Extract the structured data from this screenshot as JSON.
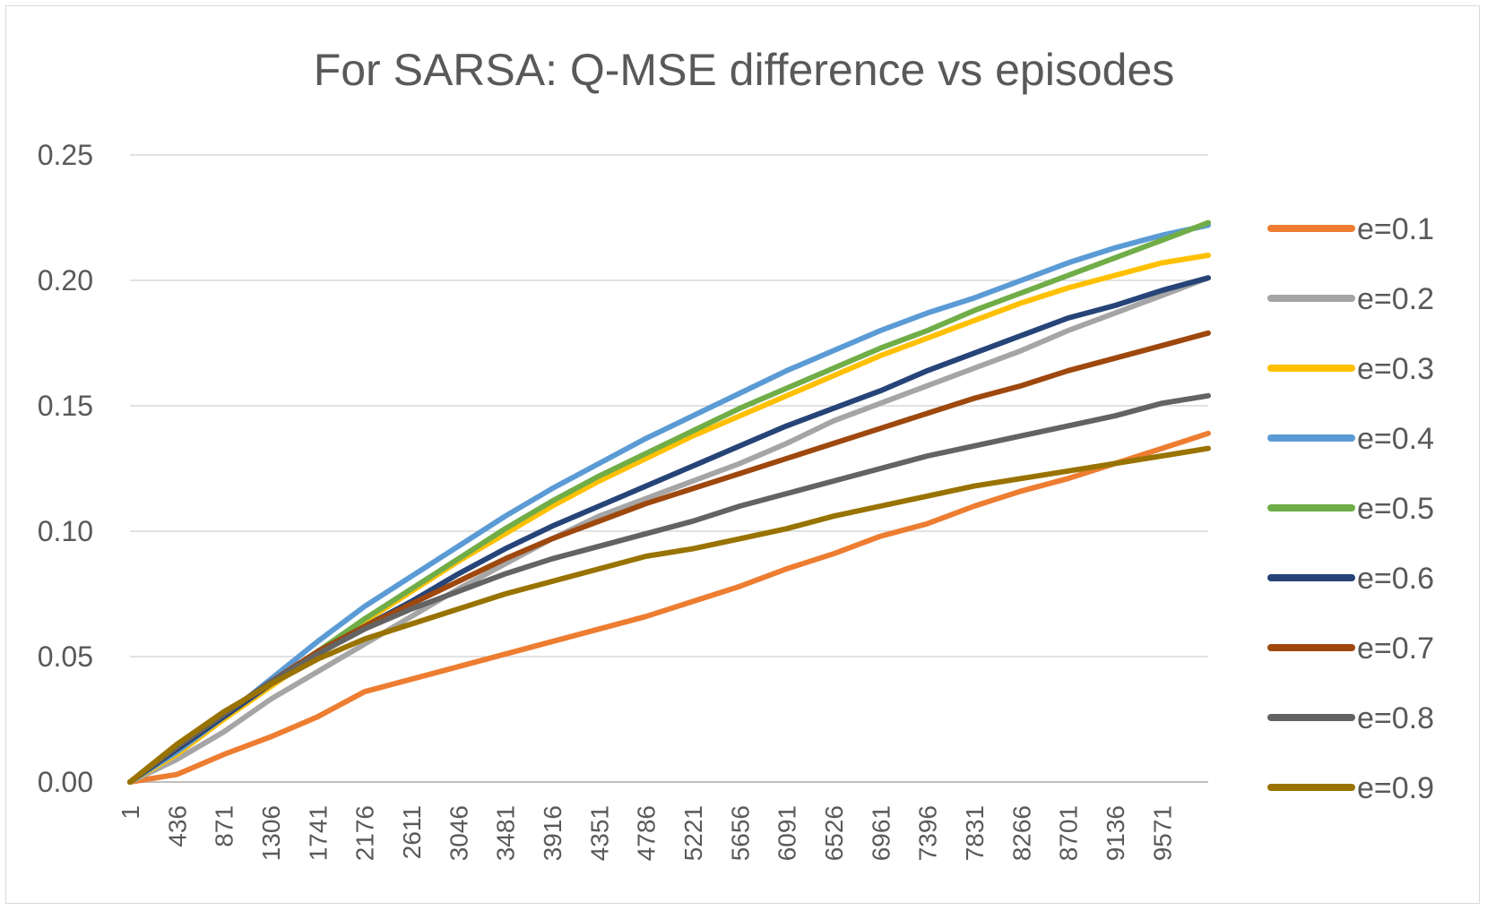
{
  "chart_data": {
    "type": "line",
    "title": "For SARSA: Q-MSE difference vs episodes",
    "xlabel": "",
    "ylabel": "",
    "ylim": [
      0,
      0.25
    ],
    "y_ticks": [
      "0.00",
      "0.05",
      "0.10",
      "0.15",
      "0.20",
      "0.25"
    ],
    "x_tick_labels": [
      "1",
      "436",
      "871",
      "1306",
      "1741",
      "2176",
      "2611",
      "3046",
      "3481",
      "3916",
      "4351",
      "4786",
      "5221",
      "5656",
      "6091",
      "6526",
      "6961",
      "7396",
      "7831",
      "8266",
      "8701",
      "9136",
      "9571"
    ],
    "x_range": [
      1,
      10000
    ],
    "grid": "horizontal",
    "legend_position": "right",
    "x": [
      1,
      436,
      871,
      1306,
      1741,
      2176,
      2611,
      3046,
      3481,
      3916,
      4351,
      4786,
      5221,
      5656,
      6091,
      6526,
      6961,
      7396,
      7831,
      8266,
      8701,
      9136,
      9571,
      10000
    ],
    "series": [
      {
        "name": "e=0.1",
        "color": "#ed7d31",
        "values": [
          0.0,
          0.003,
          0.011,
          0.018,
          0.026,
          0.036,
          0.041,
          0.046,
          0.051,
          0.056,
          0.061,
          0.066,
          0.072,
          0.078,
          0.085,
          0.091,
          0.098,
          0.103,
          0.11,
          0.116,
          0.121,
          0.127,
          0.133,
          0.139
        ]
      },
      {
        "name": "e=0.2",
        "color": "#a5a5a5",
        "values": [
          0.0,
          0.009,
          0.02,
          0.033,
          0.044,
          0.055,
          0.066,
          0.077,
          0.087,
          0.097,
          0.106,
          0.113,
          0.12,
          0.127,
          0.135,
          0.144,
          0.151,
          0.158,
          0.165,
          0.172,
          0.18,
          0.187,
          0.194,
          0.201
        ]
      },
      {
        "name": "e=0.3",
        "color": "#ffc000",
        "values": [
          0.0,
          0.011,
          0.025,
          0.038,
          0.051,
          0.064,
          0.076,
          0.088,
          0.099,
          0.11,
          0.12,
          0.129,
          0.138,
          0.146,
          0.154,
          0.162,
          0.17,
          0.177,
          0.184,
          0.191,
          0.197,
          0.202,
          0.207,
          0.21
        ]
      },
      {
        "name": "e=0.4",
        "color": "#5b9bd5",
        "values": [
          0.0,
          0.012,
          0.026,
          0.041,
          0.056,
          0.07,
          0.082,
          0.094,
          0.106,
          0.117,
          0.127,
          0.137,
          0.146,
          0.155,
          0.164,
          0.172,
          0.18,
          0.187,
          0.193,
          0.2,
          0.207,
          0.213,
          0.218,
          0.222
        ]
      },
      {
        "name": "e=0.5",
        "color": "#70ad47",
        "values": [
          0.0,
          0.013,
          0.026,
          0.039,
          0.052,
          0.065,
          0.077,
          0.089,
          0.101,
          0.112,
          0.122,
          0.131,
          0.14,
          0.149,
          0.157,
          0.165,
          0.173,
          0.18,
          0.188,
          0.195,
          0.202,
          0.209,
          0.216,
          0.223
        ]
      },
      {
        "name": "e=0.6",
        "color": "#264478",
        "values": [
          0.0,
          0.013,
          0.026,
          0.039,
          0.052,
          0.062,
          0.072,
          0.083,
          0.093,
          0.102,
          0.11,
          0.118,
          0.126,
          0.134,
          0.142,
          0.149,
          0.156,
          0.164,
          0.171,
          0.178,
          0.185,
          0.19,
          0.196,
          0.201
        ]
      },
      {
        "name": "e=0.7",
        "color": "#9e480e",
        "values": [
          0.0,
          0.014,
          0.027,
          0.04,
          0.052,
          0.062,
          0.071,
          0.08,
          0.089,
          0.097,
          0.104,
          0.111,
          0.117,
          0.123,
          0.129,
          0.135,
          0.141,
          0.147,
          0.153,
          0.158,
          0.164,
          0.169,
          0.174,
          0.179
        ]
      },
      {
        "name": "e=0.8",
        "color": "#636363",
        "values": [
          0.0,
          0.014,
          0.027,
          0.04,
          0.051,
          0.061,
          0.069,
          0.076,
          0.083,
          0.089,
          0.094,
          0.099,
          0.104,
          0.11,
          0.115,
          0.12,
          0.125,
          0.13,
          0.134,
          0.138,
          0.142,
          0.146,
          0.151,
          0.154
        ]
      },
      {
        "name": "e=0.9",
        "color": "#997300",
        "values": [
          0.0,
          0.015,
          0.028,
          0.039,
          0.049,
          0.057,
          0.063,
          0.069,
          0.075,
          0.08,
          0.085,
          0.09,
          0.093,
          0.097,
          0.101,
          0.106,
          0.11,
          0.114,
          0.118,
          0.121,
          0.124,
          0.127,
          0.13,
          0.133
        ]
      }
    ]
  }
}
